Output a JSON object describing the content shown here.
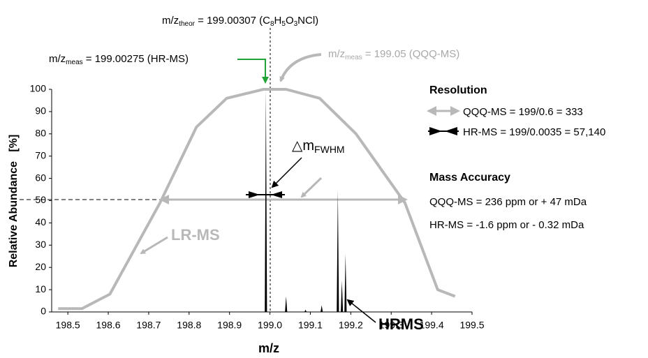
{
  "chart_data": {
    "type": "line",
    "x_label": "m/z",
    "y_label": "Relative Abundance   [%]",
    "xlim": [
      198.46,
      199.5
    ],
    "ylim": [
      0,
      100
    ],
    "xticks": [
      198.5,
      198.6,
      198.7,
      198.8,
      198.9,
      {
        "value": 199,
        "label": "199.0"
      },
      199.1,
      199.2,
      199.3,
      199.4,
      199.5
    ],
    "yticks": [
      0,
      10,
      20,
      30,
      40,
      50,
      60,
      70,
      80,
      90,
      100
    ],
    "series": [
      {
        "name": "LR-MS",
        "type": "line",
        "color": "#b8b8b8",
        "x": [
          198.476,
          198.535,
          198.604,
          198.728,
          198.818,
          198.893,
          198.984,
          199.04,
          199.123,
          199.213,
          199.334,
          199.415,
          199.458
        ],
        "values": [
          1.5,
          1.5,
          8,
          49,
          83,
          96,
          100,
          100,
          96,
          80,
          49,
          10,
          7
        ]
      },
      {
        "name": "HRMS",
        "type": "stick",
        "color": "#000000",
        "x": [
          198.99,
          199.04,
          199.088,
          199.128,
          199.168,
          199.178,
          199.187
        ],
        "values": [
          100,
          7,
          1,
          3,
          55,
          14,
          26
        ]
      }
    ],
    "annotations": [
      {
        "parts": [
          "m/z",
          "theor",
          " = 199.00307 (C",
          "8",
          "H",
          "5",
          "O",
          "3",
          "NCl)"
        ]
      },
      {
        "parts": [
          "m/z",
          "meas",
          " = 199.00275 (HR-MS)"
        ]
      },
      {
        "parts": [
          "m/z",
          "meas",
          " = 199.05 (QQQ-MS)"
        ]
      },
      {
        "parts": [
          "△m",
          "FWHM"
        ]
      }
    ],
    "resolution": {
      "heading": "Resolution",
      "rows": [
        "QQQ-MS = 199/0.6 = 333",
        "HR-MS = 199/0.0035 = 57,140"
      ]
    },
    "accuracy": {
      "heading": "Mass Accuracy",
      "rows": [
        "QQQ-MS = 236 ppm or + 47 mDa",
        "HR-MS = -1.6 ppm or - 0.32 mDa"
      ]
    }
  }
}
